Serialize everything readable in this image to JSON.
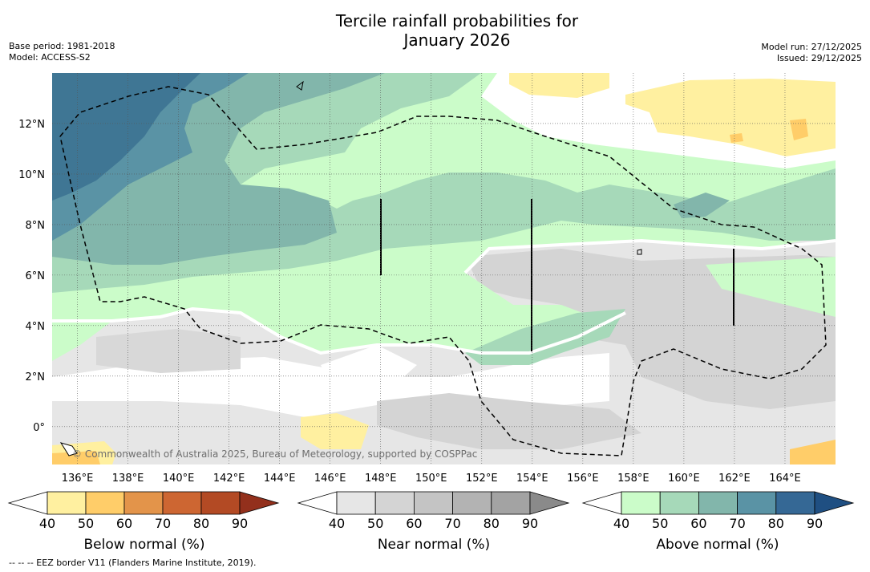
{
  "title_line1": "Tercile rainfall probabilities for",
  "title_line2": "January 2026",
  "base_period": "Base period: 1981-2018",
  "model": "Model: ACCESS-S2",
  "model_run": "Model run: 27/12/2025",
  "issued": "Issued: 29/12/2025",
  "copyright": "© Commonwealth of Australia 2025, Bureau of Meteorology, supported by COSPPac",
  "footer": "--  --  -- EEZ border V11 (Flanders Marine Institute, 2019).",
  "map": {
    "lon_range": [
      135,
      166
    ],
    "lat_range": [
      -1.5,
      14
    ],
    "lon_ticks": [
      136,
      138,
      140,
      142,
      144,
      146,
      148,
      150,
      152,
      154,
      156,
      158,
      160,
      162,
      164
    ],
    "lon_tick_labels": [
      "136°E",
      "138°E",
      "140°E",
      "142°E",
      "144°E",
      "146°E",
      "148°E",
      "150°E",
      "152°E",
      "154°E",
      "156°E",
      "158°E",
      "160°E",
      "162°E",
      "164°E"
    ],
    "lat_ticks": [
      0,
      2,
      4,
      6,
      8,
      10,
      12
    ],
    "lat_tick_labels": [
      "0°",
      "2°N",
      "4°N",
      "6°N",
      "8°N",
      "10°N",
      "12°N"
    ],
    "grid": true
  },
  "colorbars": [
    {
      "label": "Below normal (%)",
      "ticks": [
        "40",
        "50",
        "60",
        "70",
        "80",
        "90"
      ],
      "colors": [
        "#ffffff",
        "#fff0a0",
        "#ffcd69",
        "#e3944a",
        "#cd6632",
        "#b34a24",
        "#93301c"
      ]
    },
    {
      "label": "Near normal (%)",
      "ticks": [
        "40",
        "50",
        "60",
        "70",
        "80",
        "90"
      ],
      "colors": [
        "#ffffff",
        "#e6e6e6",
        "#d4d4d4",
        "#c4c4c4",
        "#b3b3b3",
        "#a3a3a3",
        "#8a8a8a"
      ]
    },
    {
      "label": "Above normal (%)",
      "ticks": [
        "40",
        "50",
        "60",
        "70",
        "80",
        "90"
      ],
      "colors": [
        "#ffffff",
        "#cbfcc9",
        "#a6d9b9",
        "#82b6ab",
        "#5a93a5",
        "#356895",
        "#1f4f82"
      ]
    }
  ]
}
